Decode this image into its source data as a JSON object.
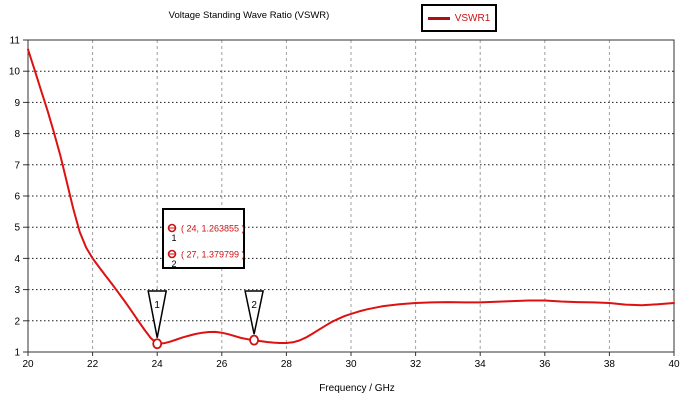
{
  "header": {
    "title": "Voltage Standing Wave Ratio (VSWR)",
    "legend": {
      "label": "VSWR1",
      "swatch_color": "#aa1111",
      "label_color": "#cc1111"
    }
  },
  "chart_data": {
    "type": "line",
    "title": "Voltage Standing Wave Ratio (VSWR)",
    "xlabel": "Frequency / GHz",
    "ylabel": "",
    "xlim": [
      20,
      40
    ],
    "ylim": [
      1,
      11
    ],
    "xticks": [
      20,
      22,
      24,
      26,
      28,
      30,
      32,
      34,
      36,
      38,
      40
    ],
    "yticks": [
      1,
      2,
      3,
      4,
      5,
      6,
      7,
      8,
      9,
      10,
      11
    ],
    "grid": true,
    "grid_h_style": "black-dotted",
    "grid_v_style": "gray-dashed",
    "legend_position": "top-center-right",
    "series": [
      {
        "name": "VSWR1",
        "color": "#dd1111",
        "points": [
          [
            20,
            10.7
          ],
          [
            20.2,
            10.05
          ],
          [
            20.4,
            9.4
          ],
          [
            20.6,
            8.75
          ],
          [
            20.8,
            8.05
          ],
          [
            21,
            7.3
          ],
          [
            21.2,
            6.45
          ],
          [
            21.4,
            5.6
          ],
          [
            21.6,
            4.85
          ],
          [
            21.8,
            4.35
          ],
          [
            22,
            4.0
          ],
          [
            22.2,
            3.72
          ],
          [
            22.4,
            3.45
          ],
          [
            22.6,
            3.18
          ],
          [
            22.8,
            2.9
          ],
          [
            23,
            2.62
          ],
          [
            23.2,
            2.32
          ],
          [
            23.4,
            2.02
          ],
          [
            23.6,
            1.72
          ],
          [
            23.8,
            1.45
          ],
          [
            24,
            1.263855
          ],
          [
            24.2,
            1.28
          ],
          [
            24.4,
            1.33
          ],
          [
            24.6,
            1.4
          ],
          [
            24.8,
            1.47
          ],
          [
            25,
            1.53
          ],
          [
            25.2,
            1.58
          ],
          [
            25.4,
            1.62
          ],
          [
            25.6,
            1.64
          ],
          [
            25.8,
            1.645
          ],
          [
            26,
            1.62
          ],
          [
            26.2,
            1.57
          ],
          [
            26.4,
            1.51
          ],
          [
            26.6,
            1.45
          ],
          [
            26.8,
            1.41
          ],
          [
            27,
            1.379799
          ],
          [
            27.2,
            1.35
          ],
          [
            27.4,
            1.32
          ],
          [
            27.6,
            1.3
          ],
          [
            27.8,
            1.29
          ],
          [
            28,
            1.29
          ],
          [
            28.2,
            1.31
          ],
          [
            28.4,
            1.37
          ],
          [
            28.6,
            1.46
          ],
          [
            28.8,
            1.58
          ],
          [
            29,
            1.71
          ],
          [
            29.2,
            1.84
          ],
          [
            29.4,
            1.96
          ],
          [
            29.6,
            2.06
          ],
          [
            29.8,
            2.15
          ],
          [
            30,
            2.22
          ],
          [
            30.25,
            2.3
          ],
          [
            30.5,
            2.37
          ],
          [
            30.75,
            2.42
          ],
          [
            31,
            2.47
          ],
          [
            31.5,
            2.53
          ],
          [
            32,
            2.57
          ],
          [
            32.5,
            2.59
          ],
          [
            33,
            2.6
          ],
          [
            33.5,
            2.59
          ],
          [
            34,
            2.59
          ],
          [
            34.5,
            2.61
          ],
          [
            35,
            2.63
          ],
          [
            35.5,
            2.65
          ],
          [
            36,
            2.65
          ],
          [
            36.5,
            2.62
          ],
          [
            37,
            2.6
          ],
          [
            37.5,
            2.59
          ],
          [
            38,
            2.57
          ],
          [
            38.5,
            2.52
          ],
          [
            39,
            2.5
          ],
          [
            39.5,
            2.53
          ],
          [
            40,
            2.57
          ]
        ]
      }
    ],
    "markers": [
      {
        "id": "1",
        "x": 24,
        "y": 1.263855,
        "label": "( 24, 1.263855 )"
      },
      {
        "id": "2",
        "x": 27,
        "y": 1.379799,
        "label": "( 27, 1.379799 )"
      }
    ],
    "marker_color": "#cc1111"
  }
}
